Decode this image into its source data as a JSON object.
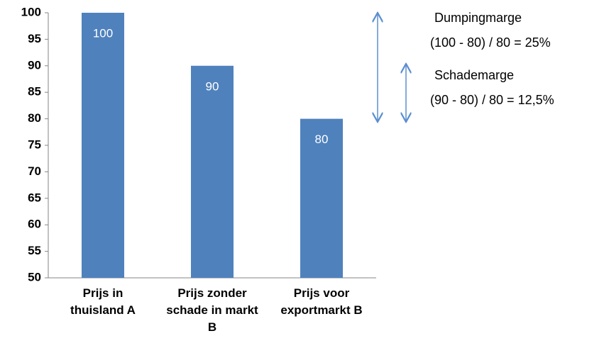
{
  "chart_data": {
    "type": "bar",
    "categories": [
      "Prijs in thuisland A",
      "Prijs zonder schade in markt B",
      "Prijs voor exportmarkt B"
    ],
    "values": [
      100,
      90,
      80
    ],
    "color": "#4f81bd",
    "ylim": [
      50,
      100
    ],
    "yticks": [
      50,
      55,
      60,
      65,
      70,
      75,
      80,
      85,
      90,
      95,
      100
    ],
    "annotations": [
      "Dumpingmarge",
      "(100 - 80) / 80 = 25%",
      "Schademarge",
      "(90 - 80) / 80 = 12,5%"
    ]
  }
}
